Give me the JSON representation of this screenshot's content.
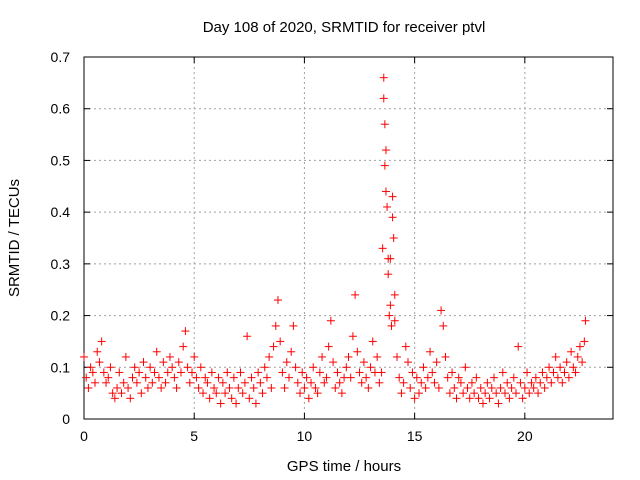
{
  "chart_data": {
    "type": "scatter",
    "title": "Day 108 of 2020, SRMTID for receiver ptvl",
    "xlabel": "GPS time / hours",
    "ylabel": "SRMTID / TECUs",
    "xlim": [
      0,
      24
    ],
    "ylim": [
      0,
      0.7
    ],
    "xticks": [
      0,
      5,
      10,
      15,
      20
    ],
    "xtick_labels": [
      "0",
      "5",
      "10",
      "15",
      "20"
    ],
    "yticks": [
      0,
      0.1,
      0.2,
      0.3,
      0.4,
      0.5,
      0.6,
      0.7
    ],
    "ytick_labels": [
      "0",
      "0.1",
      "0.2",
      "0.3",
      "0.4",
      "0.5",
      "0.6",
      "0.7"
    ],
    "grid": true,
    "marker": "+",
    "series": [
      {
        "name": "SRMTID",
        "color": "#ff0000",
        "x": [
          0.0,
          0.1,
          0.2,
          0.3,
          0.4,
          0.5,
          0.6,
          0.7,
          0.8,
          0.9,
          1.0,
          1.1,
          1.2,
          1.3,
          1.4,
          1.5,
          1.6,
          1.7,
          1.8,
          1.9,
          2.0,
          2.1,
          2.2,
          2.3,
          2.4,
          2.5,
          2.6,
          2.7,
          2.8,
          2.9,
          3.0,
          3.1,
          3.2,
          3.3,
          3.4,
          3.5,
          3.6,
          3.7,
          3.8,
          3.9,
          4.0,
          4.1,
          4.2,
          4.3,
          4.4,
          4.5,
          4.6,
          4.7,
          4.8,
          4.9,
          5.0,
          5.1,
          5.2,
          5.3,
          5.4,
          5.5,
          5.6,
          5.7,
          5.8,
          5.9,
          6.0,
          6.1,
          6.2,
          6.3,
          6.4,
          6.5,
          6.6,
          6.7,
          6.8,
          6.9,
          7.0,
          7.1,
          7.2,
          7.3,
          7.4,
          7.5,
          7.6,
          7.7,
          7.8,
          7.9,
          8.0,
          8.1,
          8.2,
          8.3,
          8.4,
          8.5,
          8.6,
          8.7,
          8.8,
          8.9,
          9.0,
          9.1,
          9.2,
          9.3,
          9.4,
          9.5,
          9.6,
          9.7,
          9.8,
          9.9,
          10.0,
          10.1,
          10.2,
          10.3,
          10.4,
          10.5,
          10.6,
          10.7,
          10.8,
          10.9,
          11.0,
          11.1,
          11.2,
          11.3,
          11.4,
          11.5,
          11.6,
          11.7,
          11.8,
          11.9,
          12.0,
          12.1,
          12.2,
          12.3,
          12.4,
          12.5,
          12.6,
          12.7,
          12.8,
          12.9,
          13.0,
          13.1,
          13.2,
          13.3,
          13.4,
          13.5,
          13.55,
          13.6,
          13.6,
          13.65,
          13.65,
          13.7,
          13.7,
          13.75,
          13.8,
          13.8,
          13.85,
          13.9,
          13.9,
          13.95,
          14.0,
          14.0,
          14.05,
          14.1,
          14.1,
          14.2,
          14.3,
          14.4,
          14.5,
          14.6,
          14.7,
          14.8,
          14.9,
          15.0,
          15.1,
          15.2,
          15.3,
          15.4,
          15.5,
          15.6,
          15.7,
          15.8,
          15.9,
          16.0,
          16.1,
          16.2,
          16.3,
          16.4,
          16.5,
          16.6,
          16.7,
          16.8,
          16.9,
          17.0,
          17.1,
          17.2,
          17.3,
          17.4,
          17.5,
          17.6,
          17.7,
          17.8,
          17.9,
          18.0,
          18.1,
          18.2,
          18.3,
          18.4,
          18.5,
          18.6,
          18.7,
          18.8,
          18.9,
          19.0,
          19.1,
          19.2,
          19.3,
          19.4,
          19.5,
          19.6,
          19.7,
          19.8,
          19.9,
          20.0,
          20.1,
          20.2,
          20.3,
          20.4,
          20.5,
          20.6,
          20.7,
          20.8,
          20.9,
          21.0,
          21.1,
          21.2,
          21.3,
          21.4,
          21.5,
          21.6,
          21.7,
          21.8,
          21.9,
          22.0,
          22.1,
          22.2,
          22.3,
          22.4,
          22.5,
          22.6,
          22.7,
          22.75
        ],
        "y": [
          0.12,
          0.08,
          0.06,
          0.1,
          0.09,
          0.07,
          0.13,
          0.11,
          0.15,
          0.09,
          0.07,
          0.08,
          0.1,
          0.05,
          0.04,
          0.06,
          0.09,
          0.05,
          0.07,
          0.12,
          0.06,
          0.04,
          0.08,
          0.1,
          0.07,
          0.09,
          0.05,
          0.11,
          0.08,
          0.06,
          0.1,
          0.07,
          0.09,
          0.13,
          0.08,
          0.06,
          0.11,
          0.07,
          0.09,
          0.12,
          0.1,
          0.08,
          0.06,
          0.11,
          0.09,
          0.14,
          0.17,
          0.1,
          0.07,
          0.09,
          0.12,
          0.08,
          0.06,
          0.1,
          0.05,
          0.08,
          0.07,
          0.04,
          0.09,
          0.06,
          0.05,
          0.08,
          0.03,
          0.07,
          0.05,
          0.09,
          0.06,
          0.04,
          0.08,
          0.03,
          0.06,
          0.09,
          0.05,
          0.07,
          0.16,
          0.04,
          0.08,
          0.06,
          0.03,
          0.09,
          0.07,
          0.05,
          0.1,
          0.08,
          0.12,
          0.06,
          0.14,
          0.18,
          0.23,
          0.15,
          0.09,
          0.06,
          0.11,
          0.08,
          0.13,
          0.18,
          0.1,
          0.07,
          0.05,
          0.09,
          0.06,
          0.08,
          0.04,
          0.07,
          0.1,
          0.06,
          0.05,
          0.09,
          0.12,
          0.07,
          0.08,
          0.14,
          0.19,
          0.11,
          0.06,
          0.09,
          0.07,
          0.05,
          0.08,
          0.1,
          0.12,
          0.08,
          0.16,
          0.24,
          0.13,
          0.09,
          0.07,
          0.11,
          0.08,
          0.06,
          0.1,
          0.15,
          0.09,
          0.12,
          0.07,
          0.09,
          0.33,
          0.66,
          0.62,
          0.57,
          0.49,
          0.52,
          0.44,
          0.41,
          0.31,
          0.28,
          0.2,
          0.22,
          0.31,
          0.18,
          0.43,
          0.39,
          0.35,
          0.24,
          0.19,
          0.12,
          0.08,
          0.05,
          0.07,
          0.14,
          0.11,
          0.06,
          0.09,
          0.04,
          0.08,
          0.05,
          0.07,
          0.1,
          0.06,
          0.08,
          0.13,
          0.09,
          0.07,
          0.11,
          0.06,
          0.21,
          0.18,
          0.12,
          0.08,
          0.05,
          0.09,
          0.06,
          0.04,
          0.08,
          0.07,
          0.05,
          0.1,
          0.06,
          0.04,
          0.07,
          0.05,
          0.08,
          0.04,
          0.06,
          0.03,
          0.05,
          0.07,
          0.04,
          0.06,
          0.08,
          0.05,
          0.03,
          0.06,
          0.09,
          0.05,
          0.07,
          0.04,
          0.06,
          0.08,
          0.05,
          0.14,
          0.07,
          0.04,
          0.06,
          0.09,
          0.05,
          0.07,
          0.06,
          0.08,
          0.05,
          0.07,
          0.09,
          0.06,
          0.08,
          0.1,
          0.07,
          0.09,
          0.12,
          0.08,
          0.1,
          0.07,
          0.09,
          0.11,
          0.08,
          0.13,
          0.1,
          0.09,
          0.12,
          0.14,
          0.11,
          0.15,
          0.19
        ]
      }
    ]
  }
}
